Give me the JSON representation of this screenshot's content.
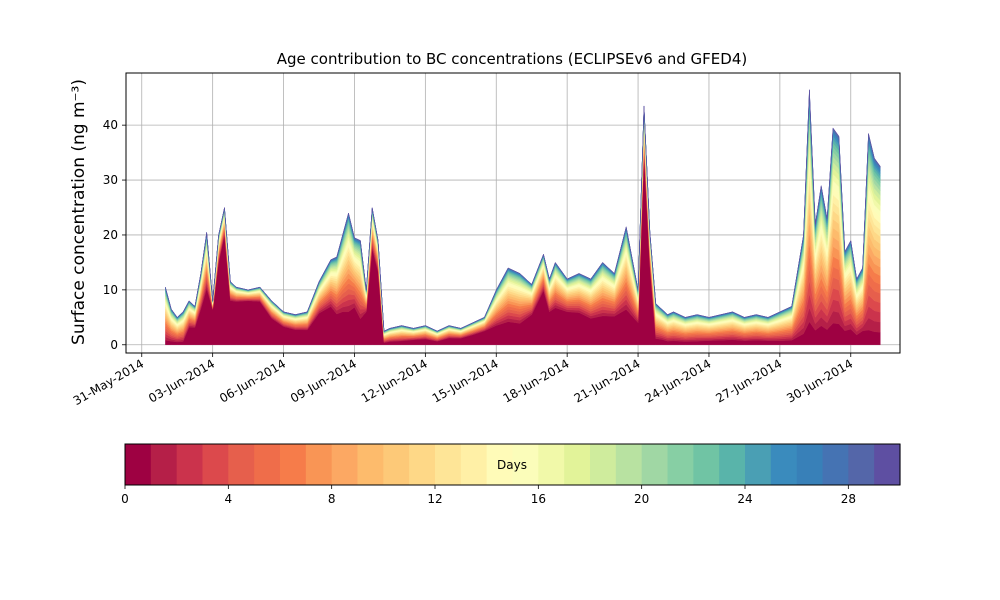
{
  "chart_data": {
    "type": "area",
    "title": "Age contribution to BC concentrations (ECLIPSEv6 and GFED4)",
    "ylabel": "Surface concentration (ng m⁻³)",
    "xlabel": "",
    "stacked": true,
    "grid": true,
    "ylim": [
      -1.5,
      49.5
    ],
    "xlim": [
      "2014-05-30T08:00",
      "2014-07-02T02:00"
    ],
    "xticks": [
      "2014-05-31",
      "2014-06-03",
      "2014-06-06",
      "2014-06-09",
      "2014-06-12",
      "2014-06-15",
      "2014-06-18",
      "2014-06-21",
      "2014-06-24",
      "2014-06-27",
      "2014-06-30"
    ],
    "xtick_labels": [
      "31-May-2014",
      "03-Jun-2014",
      "06-Jun-2014",
      "09-Jun-2014",
      "12-Jun-2014",
      "15-Jun-2014",
      "18-Jun-2014",
      "21-Jun-2014",
      "24-Jun-2014",
      "27-Jun-2014",
      "30-Jun-2014"
    ],
    "yticks": [
      0,
      10,
      20,
      30,
      40
    ],
    "series_note": "30 stacked age classes (0-30 days), fractions of total",
    "total": {
      "x": [
        "2014-06-01T00:00",
        "2014-06-01T06:00",
        "2014-06-01T12:00",
        "2014-06-01T18:00",
        "2014-06-02T00:00",
        "2014-06-02T06:00",
        "2014-06-02T12:00",
        "2014-06-02T18:00",
        "2014-06-03T00:00",
        "2014-06-03T06:00",
        "2014-06-03T12:00",
        "2014-06-03T18:00",
        "2014-06-04T00:00",
        "2014-06-04T12:00",
        "2014-06-05T00:00",
        "2014-06-05T12:00",
        "2014-06-06T00:00",
        "2014-06-06T12:00",
        "2014-06-07T00:00",
        "2014-06-07T12:00",
        "2014-06-08T00:00",
        "2014-06-08T06:00",
        "2014-06-08T12:00",
        "2014-06-08T18:00",
        "2014-06-09T00:00",
        "2014-06-09T06:00",
        "2014-06-09T12:00",
        "2014-06-09T18:00",
        "2014-06-10T00:00",
        "2014-06-10T06:00",
        "2014-06-10T12:00",
        "2014-06-11T00:00",
        "2014-06-11T12:00",
        "2014-06-12T00:00",
        "2014-06-12T12:00",
        "2014-06-13T00:00",
        "2014-06-13T12:00",
        "2014-06-14T00:00",
        "2014-06-14T12:00",
        "2014-06-15T00:00",
        "2014-06-15T12:00",
        "2014-06-16T00:00",
        "2014-06-16T12:00",
        "2014-06-17T00:00",
        "2014-06-17T06:00",
        "2014-06-17T12:00",
        "2014-06-18T00:00",
        "2014-06-18T12:00",
        "2014-06-19T00:00",
        "2014-06-19T12:00",
        "2014-06-20T00:00",
        "2014-06-20T12:00",
        "2014-06-21T00:00",
        "2014-06-21T06:00",
        "2014-06-21T12:00",
        "2014-06-21T18:00",
        "2014-06-22T00:00",
        "2014-06-22T06:00",
        "2014-06-22T12:00",
        "2014-06-22T18:00",
        "2014-06-23T00:00",
        "2014-06-23T12:00",
        "2014-06-24T00:00",
        "2014-06-24T12:00",
        "2014-06-25T00:00",
        "2014-06-25T12:00",
        "2014-06-26T00:00",
        "2014-06-26T12:00",
        "2014-06-27T00:00",
        "2014-06-27T12:00",
        "2014-06-28T00:00",
        "2014-06-28T06:00",
        "2014-06-28T12:00",
        "2014-06-28T18:00",
        "2014-06-29T00:00",
        "2014-06-29T06:00",
        "2014-06-29T12:00",
        "2014-06-29T18:00",
        "2014-06-30T00:00",
        "2014-06-30T06:00",
        "2014-06-30T12:00",
        "2014-06-30T18:00",
        "2014-07-01T00:00",
        "2014-07-01T06:00"
      ],
      "y": [
        10.5,
        6.5,
        5.0,
        6.0,
        8.0,
        7.0,
        13.0,
        20.5,
        8.0,
        20.0,
        25.0,
        11.5,
        10.5,
        10.0,
        10.5,
        8.0,
        6.0,
        5.5,
        6.0,
        11.5,
        15.5,
        16.0,
        20.0,
        24.0,
        19.5,
        19.0,
        10.0,
        25.0,
        19.0,
        2.5,
        3.0,
        3.5,
        3.0,
        3.5,
        2.5,
        3.5,
        3.0,
        4.0,
        5.0,
        10.0,
        14.0,
        13.0,
        11.0,
        16.5,
        12.0,
        15.0,
        12.0,
        13.0,
        12.0,
        15.0,
        13.0,
        21.5,
        10.0,
        43.5,
        20.5,
        7.5,
        6.5,
        5.5,
        6.0,
        5.5,
        5.0,
        5.5,
        5.0,
        5.5,
        6.0,
        5.0,
        5.5,
        5.0,
        6.0,
        7.0,
        20.0,
        46.5,
        22.0,
        29.0,
        23.0,
        39.5,
        38.0,
        17.0,
        19.0,
        12.0,
        14.0,
        38.5,
        34.0,
        32.5
      ],
      "recent_fraction": [
        0.08,
        0.1,
        0.1,
        0.1,
        0.4,
        0.45,
        0.5,
        0.5,
        0.8,
        0.75,
        0.8,
        0.7,
        0.75,
        0.8,
        0.75,
        0.6,
        0.55,
        0.5,
        0.45,
        0.5,
        0.45,
        0.35,
        0.3,
        0.25,
        0.35,
        0.25,
        0.6,
        0.7,
        0.7,
        0.15,
        0.2,
        0.2,
        0.3,
        0.3,
        0.25,
        0.35,
        0.4,
        0.45,
        0.5,
        0.35,
        0.3,
        0.3,
        0.5,
        0.6,
        0.5,
        0.45,
        0.5,
        0.45,
        0.4,
        0.35,
        0.4,
        0.3,
        0.4,
        0.8,
        0.7,
        0.15,
        0.15,
        0.12,
        0.12,
        0.12,
        0.12,
        0.12,
        0.15,
        0.15,
        0.15,
        0.15,
        0.15,
        0.15,
        0.12,
        0.12,
        0.1,
        0.09,
        0.12,
        0.12,
        0.12,
        0.1,
        0.1,
        0.15,
        0.15,
        0.15,
        0.18,
        0.07,
        0.07,
        0.07
      ]
    },
    "colorbar": {
      "label": "Days",
      "range": [
        0,
        30
      ],
      "ticks": [
        0,
        4,
        8,
        12,
        16,
        20,
        24,
        28
      ],
      "colors": [
        "#9e0142",
        "#b51f48",
        "#cb334c",
        "#dc494c",
        "#e65f4c",
        "#ef6d4a",
        "#f67c4a",
        "#f99555",
        "#fca863",
        "#fdbb6c",
        "#fdc978",
        "#fed887",
        "#fee597",
        "#fff0a6",
        "#fffbb8",
        "#fbfdba",
        "#f1f9a9",
        "#e2f399",
        "#cfec9d",
        "#b8e2a1",
        "#a0d7a4",
        "#87cfa4",
        "#70c4a4",
        "#59b4aa",
        "#4a9fb4",
        "#3a8bbd",
        "#3880b8",
        "#4573b3",
        "#5466a9",
        "#5e4fa2"
      ]
    }
  }
}
